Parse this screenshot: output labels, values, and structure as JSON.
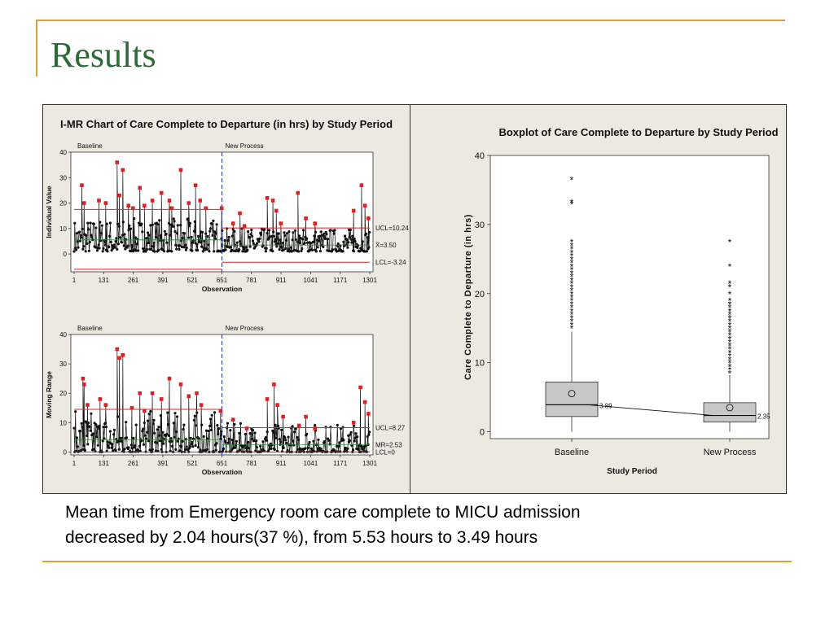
{
  "slide": {
    "title": "Results",
    "caption_line1": "Mean time from Emergency room care complete to MICU admission",
    "caption_line2": "decreased by 2.04 hours(37 %), from 5.53 hours to 3.49 hours"
  },
  "colors": {
    "title": "#2e6a36",
    "accent": "#d4a43a",
    "panel_bg": "#ece9e1",
    "control_limit": "#e02020",
    "phase_divider": "#1f2fa0",
    "flagged_point": "#e02020",
    "box_fill": "#c8c8c8"
  },
  "chart_data": [
    {
      "type": "line",
      "title": "I-MR Chart of Care Complete to Departure (in hrs) by Study Period",
      "chart_name": "individuals",
      "ylabel": "Individual Value",
      "xlabel": "Observation",
      "phases": [
        "Baseline",
        "New Process"
      ],
      "x_ticks": [
        "1",
        "131",
        "261",
        "391",
        "521",
        "651",
        "781",
        "911",
        "1041",
        "1171",
        "1301"
      ],
      "y_ticks": [
        "0",
        "10",
        "20",
        "30",
        "40"
      ],
      "ylim": [
        -7,
        40
      ],
      "xlim": [
        1,
        1301
      ],
      "phase_break": 651,
      "baseline_limits": {
        "ucl": 17.5,
        "center": 5.53,
        "lcl": -6.0
      },
      "new_process_limits": {
        "ucl": 10.24,
        "center": 3.5,
        "lcl": -3.24
      },
      "limit_labels": {
        "ucl": "UCL=10.24",
        "center": "X̄=3.50",
        "lcl": "LCL=-3.24"
      },
      "flagged_points": [
        {
          "x": 35,
          "y": 27
        },
        {
          "x": 45,
          "y": 20
        },
        {
          "x": 110,
          "y": 21
        },
        {
          "x": 140,
          "y": 20
        },
        {
          "x": 190,
          "y": 36
        },
        {
          "x": 200,
          "y": 23
        },
        {
          "x": 215,
          "y": 33
        },
        {
          "x": 240,
          "y": 19
        },
        {
          "x": 260,
          "y": 18
        },
        {
          "x": 290,
          "y": 26
        },
        {
          "x": 310,
          "y": 19
        },
        {
          "x": 345,
          "y": 21
        },
        {
          "x": 385,
          "y": 24
        },
        {
          "x": 420,
          "y": 21
        },
        {
          "x": 430,
          "y": 18
        },
        {
          "x": 470,
          "y": 33
        },
        {
          "x": 505,
          "y": 20
        },
        {
          "x": 535,
          "y": 27
        },
        {
          "x": 555,
          "y": 21
        },
        {
          "x": 580,
          "y": 18
        },
        {
          "x": 650,
          "y": 18
        },
        {
          "x": 700,
          "y": 12
        },
        {
          "x": 730,
          "y": 16
        },
        {
          "x": 750,
          "y": 11
        },
        {
          "x": 850,
          "y": 22
        },
        {
          "x": 875,
          "y": 21
        },
        {
          "x": 890,
          "y": 17
        },
        {
          "x": 910,
          "y": 12
        },
        {
          "x": 985,
          "y": 24
        },
        {
          "x": 1020,
          "y": 14
        },
        {
          "x": 1060,
          "y": 12
        },
        {
          "x": 1230,
          "y": 17
        },
        {
          "x": 1265,
          "y": 27
        },
        {
          "x": 1280,
          "y": 19
        },
        {
          "x": 1295,
          "y": 14
        }
      ]
    },
    {
      "type": "line",
      "chart_name": "moving-range",
      "ylabel": "Moving Range",
      "xlabel": "Observation",
      "phases": [
        "Baseline",
        "New Process"
      ],
      "x_ticks": [
        "1",
        "131",
        "261",
        "391",
        "521",
        "651",
        "781",
        "911",
        "1041",
        "1171",
        "1301"
      ],
      "y_ticks": [
        "0",
        "10",
        "20",
        "30",
        "40"
      ],
      "ylim": [
        -1,
        40
      ],
      "xlim": [
        1,
        1301
      ],
      "phase_break": 651,
      "baseline_limits": {
        "ucl": 14.5,
        "center": 4.2,
        "lcl": 0
      },
      "new_process_limits": {
        "ucl": 8.27,
        "center": 2.53,
        "lcl": 0
      },
      "limit_labels": {
        "ucl": "UCL=8.27",
        "center": "MR=2.53",
        "lcl": "LCL=0"
      },
      "flagged_points": [
        {
          "x": 40,
          "y": 25
        },
        {
          "x": 45,
          "y": 23
        },
        {
          "x": 60,
          "y": 16
        },
        {
          "x": 115,
          "y": 18
        },
        {
          "x": 140,
          "y": 16
        },
        {
          "x": 190,
          "y": 35
        },
        {
          "x": 200,
          "y": 32
        },
        {
          "x": 215,
          "y": 33
        },
        {
          "x": 255,
          "y": 15
        },
        {
          "x": 290,
          "y": 20
        },
        {
          "x": 310,
          "y": 14
        },
        {
          "x": 345,
          "y": 20
        },
        {
          "x": 385,
          "y": 18
        },
        {
          "x": 420,
          "y": 25
        },
        {
          "x": 470,
          "y": 23
        },
        {
          "x": 505,
          "y": 19
        },
        {
          "x": 540,
          "y": 20
        },
        {
          "x": 560,
          "y": 16
        },
        {
          "x": 645,
          "y": 14
        },
        {
          "x": 700,
          "y": 11
        },
        {
          "x": 760,
          "y": 8
        },
        {
          "x": 850,
          "y": 18
        },
        {
          "x": 880,
          "y": 23
        },
        {
          "x": 895,
          "y": 16
        },
        {
          "x": 920,
          "y": 12
        },
        {
          "x": 990,
          "y": 9
        },
        {
          "x": 1020,
          "y": 12
        },
        {
          "x": 1060,
          "y": 8
        },
        {
          "x": 1230,
          "y": 10
        },
        {
          "x": 1260,
          "y": 22
        },
        {
          "x": 1280,
          "y": 17
        },
        {
          "x": 1295,
          "y": 13
        }
      ]
    },
    {
      "type": "box",
      "title": "Boxplot of Care Complete to Departure by Study Period",
      "xlabel": "Study Period",
      "ylabel": "Care Complete to Departure (in hrs)",
      "categories": [
        "Baseline",
        "New Process"
      ],
      "y_ticks": [
        "0",
        "10",
        "20",
        "30",
        "40"
      ],
      "ylim": [
        -1,
        40
      ],
      "boxes": [
        {
          "name": "Baseline",
          "whisker_low": 0,
          "q1": 2.2,
          "median": 3.9,
          "q3": 7.2,
          "whisker_high": 14.5,
          "mean": 5.53,
          "median_label": "3.89",
          "outliers": [
            15,
            15.5,
            16,
            16.5,
            17,
            17.5,
            18,
            18.5,
            19,
            19.5,
            20,
            20.5,
            21,
            21.5,
            22,
            22.5,
            23,
            23.5,
            24,
            24.5,
            25,
            25.5,
            26,
            26.5,
            27,
            27.5,
            33,
            33.3,
            36.5
          ]
        },
        {
          "name": "New Process",
          "whisker_low": 0,
          "q1": 1.4,
          "median": 2.35,
          "q3": 4.2,
          "whisker_high": 8.2,
          "mean": 3.49,
          "median_label": "2.35",
          "outliers": [
            8.5,
            9,
            9.5,
            10,
            10.5,
            11,
            11.5,
            12,
            12.5,
            13,
            13.5,
            14,
            14.5,
            15,
            15.5,
            16,
            16.5,
            17,
            17.5,
            18,
            18.5,
            19,
            20,
            21,
            21.5,
            24,
            27.5
          ]
        }
      ]
    }
  ]
}
